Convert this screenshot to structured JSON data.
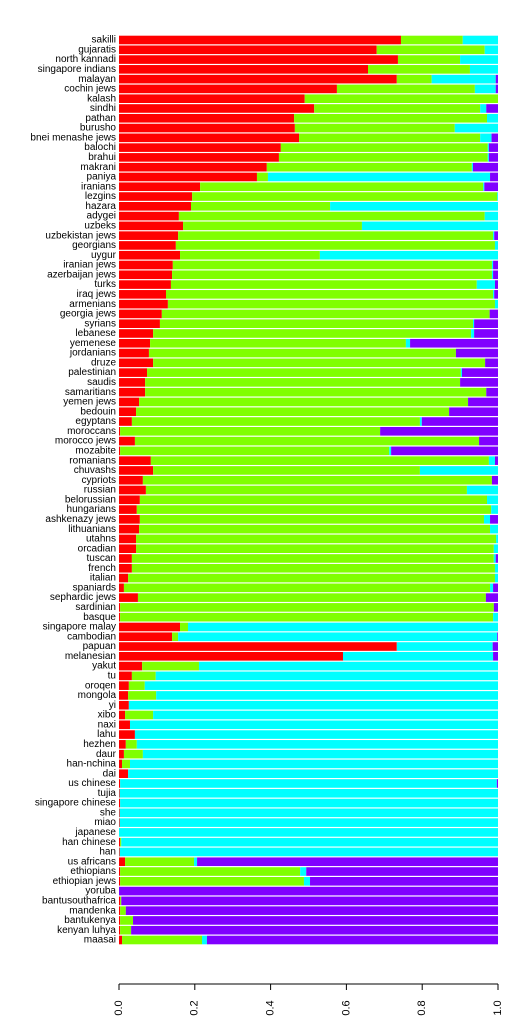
{
  "chart_data": {
    "type": "stacked_barh",
    "categories": [
      "sakilli",
      "gujaratis",
      "north kannadi",
      "singapore indians",
      "malayan",
      "cochin jews",
      "kalash",
      "sindhi",
      "pathan",
      "burusho",
      "bnei menashe jews",
      "balochi",
      "brahui",
      "makrani",
      "paniya",
      "iranians",
      "lezgins",
      "hazara",
      "adygei",
      "uzbeks",
      "uzbekistan jews",
      "georgians",
      "uygur",
      "iranian jews",
      "azerbaijan jews",
      "turks",
      "iraq jews",
      "armenians",
      "georgia jews",
      "syrians",
      "lebanese",
      "yemenese",
      "jordanians",
      "druze",
      "palestinian",
      "saudis",
      "samaritians",
      "yemen jews",
      "bedouin",
      "egyptans",
      "moroccans",
      "morocco jews",
      "mozabite",
      "romanians",
      "chuvashs",
      "cypriots",
      "russian",
      "belorussian",
      "hungarians",
      "ashkenazy jews",
      "lithuanians",
      "utahns",
      "orcadian",
      "tuscan",
      "french",
      "italian",
      "spaniards",
      "sephardic jews",
      "sardinian",
      "basque",
      "singapore malay",
      "cambodian",
      "papuan",
      "melanesian",
      "yakut",
      "tu",
      "oroqen",
      "mongola",
      "yi",
      "xibo",
      "naxi",
      "lahu",
      "hezhen",
      "daur",
      "han-nchina",
      "dai",
      "us chinese",
      "tujia",
      "singapore chinese",
      "she",
      "miao",
      "japanese",
      "han chinese",
      "han",
      "us africans",
      "ethiopians",
      "ethiopian jews",
      "yoruba",
      "bantusouthafrica",
      "mandenka",
      "bantukenya",
      "kenyan luhya",
      "maasai"
    ],
    "series": [
      {
        "color": "#ff0000",
        "values": [
          0.744,
          0.68,
          0.736,
          0.657,
          0.733,
          0.575,
          0.49,
          0.515,
          0.462,
          0.464,
          0.475,
          0.427,
          0.422,
          0.39,
          0.364,
          0.214,
          0.193,
          0.19,
          0.158,
          0.169,
          0.156,
          0.15,
          0.161,
          0.142,
          0.14,
          0.137,
          0.124,
          0.129,
          0.113,
          0.108,
          0.09,
          0.082,
          0.079,
          0.09,
          0.074,
          0.069,
          0.069,
          0.053,
          0.045,
          0.034,
          0.003,
          0.042,
          0.003,
          0.084,
          0.09,
          0.063,
          0.071,
          0.055,
          0.047,
          0.055,
          0.053,
          0.045,
          0.045,
          0.034,
          0.034,
          0.024,
          0.013,
          0.05,
          0.003,
          0.003,
          0.161,
          0.14,
          0.733,
          0.591,
          0.061,
          0.034,
          0.026,
          0.024,
          0.026,
          0.016,
          0.029,
          0.042,
          0.018,
          0.013,
          0.008,
          0.024,
          0.003,
          0.002,
          0.003,
          0.002,
          0.002,
          0,
          0.003,
          0.002,
          0.016,
          0.003,
          0.003,
          0,
          0.003,
          0.003,
          0.003,
          0.003,
          0.008
        ]
      },
      {
        "color": "#80ff00",
        "values": [
          0.163,
          0.285,
          0.164,
          0.269,
          0.092,
          0.364,
          0.51,
          0.438,
          0.509,
          0.422,
          0.478,
          0.546,
          0.551,
          0.541,
          0.029,
          0.747,
          0.805,
          0.367,
          0.807,
          0.472,
          0.831,
          0.842,
          0.369,
          0.842,
          0.844,
          0.807,
          0.863,
          0.863,
          0.865,
          0.826,
          0.839,
          0.675,
          0.81,
          0.876,
          0.828,
          0.831,
          0.9,
          0.868,
          0.826,
          0.76,
          0.686,
          0.908,
          0.71,
          0.892,
          0.704,
          0.921,
          0.847,
          0.916,
          0.935,
          0.908,
          0.926,
          0.95,
          0.944,
          0.955,
          0.958,
          0.968,
          0.966,
          0.918,
          0.986,
          0.984,
          0.021,
          0.016,
          0,
          0,
          0.15,
          0.063,
          0.042,
          0.074,
          0,
          0.074,
          0,
          0,
          0.029,
          0.05,
          0.021,
          0,
          0,
          0,
          0,
          0,
          0,
          0,
          0.003,
          0,
          0.182,
          0.475,
          0.485,
          0,
          0.003,
          0.015,
          0.034,
          0.029,
          0.211
        ]
      },
      {
        "color": "#00ffff",
        "values": [
          0.093,
          0.035,
          0.1,
          0.074,
          0.169,
          0.055,
          0,
          0.016,
          0.029,
          0.114,
          0.03,
          0.003,
          0.003,
          0.003,
          0.586,
          0.003,
          0.002,
          0.443,
          0.035,
          0.359,
          0.003,
          0.008,
          0.47,
          0.003,
          0.003,
          0.048,
          0.003,
          0.008,
          0,
          0.003,
          0.008,
          0.011,
          0,
          0,
          0.003,
          0,
          0,
          0,
          0,
          0.005,
          0,
          0,
          0.005,
          0.016,
          0.206,
          0,
          0.082,
          0.029,
          0.018,
          0.016,
          0.021,
          0.005,
          0.011,
          0.005,
          0.008,
          0.008,
          0.008,
          0,
          0,
          0.013,
          0.818,
          0.842,
          0.253,
          0.396,
          0.789,
          0.903,
          0.932,
          0.902,
          0.974,
          0.91,
          0.971,
          0.958,
          0.953,
          0.937,
          0.971,
          0.976,
          0.994,
          0.998,
          0.997,
          0.998,
          0.998,
          1,
          0.994,
          0.998,
          0.008,
          0.016,
          0.016,
          0,
          0,
          0,
          0,
          0,
          0.013
        ]
      },
      {
        "color": "#8000ff",
        "values": [
          0,
          0,
          0,
          0,
          0.006,
          0.006,
          0,
          0.031,
          0,
          0,
          0.017,
          0.024,
          0.024,
          0.066,
          0.021,
          0.036,
          0,
          0,
          0,
          0,
          0.01,
          0,
          0,
          0.013,
          0.013,
          0.008,
          0.01,
          0,
          0.022,
          0.063,
          0.063,
          0.232,
          0.111,
          0.034,
          0.095,
          0.1,
          0.031,
          0.079,
          0.129,
          0.201,
          0.311,
          0.05,
          0.282,
          0.008,
          0,
          0.016,
          0,
          0,
          0,
          0.021,
          0,
          0,
          0,
          0.006,
          0,
          0,
          0.013,
          0.032,
          0.011,
          0,
          0,
          0.002,
          0.014,
          0.013,
          0,
          0,
          0,
          0,
          0,
          0,
          0,
          0,
          0,
          0,
          0,
          0,
          0.003,
          0,
          0,
          0,
          0,
          0,
          0,
          0,
          0.794,
          0.506,
          0.496,
          1,
          0.994,
          0.982,
          0.963,
          0.968,
          0.768
        ]
      }
    ],
    "xlim": [
      0,
      1
    ],
    "xticks": [
      {
        "value": 0,
        "label": "0.0"
      },
      0.2,
      0.4,
      0.6,
      0.8,
      {
        "value": 1,
        "label": "1.0"
      }
    ]
  }
}
